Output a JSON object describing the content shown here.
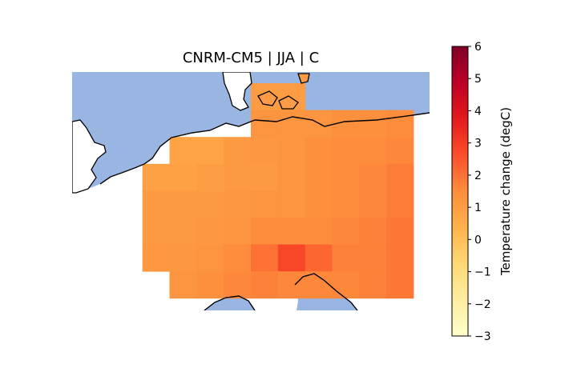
{
  "title": "CNRM-CM5 | JJA | C",
  "colorbar": {
    "label": "Temperature change (degC)",
    "min": -3,
    "max": 6,
    "ticks": [
      -3,
      -2,
      -1,
      0,
      1,
      2,
      3,
      4,
      5,
      6
    ],
    "tick_labels": [
      "−3",
      "−2",
      "−1",
      "0",
      "1",
      "2",
      "3",
      "4",
      "5",
      "6"
    ],
    "colormap": "YlOrRd",
    "stops": [
      "#ffffcc",
      "#ffeda0",
      "#fed976",
      "#feb24c",
      "#fd8d3c",
      "#fc4e2a",
      "#e31a1c",
      "#bd0026",
      "#800026"
    ]
  },
  "colors": {
    "sea": "#98b6e1",
    "coast": "#000000"
  },
  "grid": {
    "rows": 9,
    "cols": 12,
    "values": [
      [
        null,
        null,
        null,
        null,
        null,
        null,
        1.0,
        1.0,
        null,
        null,
        null,
        null
      ],
      [
        null,
        null,
        null,
        null,
        null,
        null,
        1.3,
        1.3,
        1.3,
        1.4,
        1.4,
        1.5
      ],
      [
        null,
        null,
        null,
        0.8,
        0.8,
        1.1,
        1.2,
        1.3,
        1.4,
        1.5,
        1.5,
        1.6
      ],
      [
        null,
        null,
        0.9,
        0.9,
        1.0,
        1.1,
        1.1,
        1.3,
        1.4,
        1.5,
        1.6,
        1.8
      ],
      [
        null,
        null,
        1.1,
        1.1,
        1.1,
        1.2,
        1.3,
        1.3,
        1.4,
        1.5,
        1.6,
        1.8
      ],
      [
        null,
        null,
        1.1,
        1.1,
        1.2,
        1.3,
        1.5,
        1.5,
        1.5,
        1.6,
        1.7,
        1.9
      ],
      [
        null,
        null,
        1.2,
        1.2,
        1.3,
        1.5,
        2.0,
        2.8,
        2.2,
        1.7,
        1.7,
        1.9
      ],
      [
        null,
        null,
        null,
        1.3,
        1.4,
        1.6,
        1.7,
        1.6,
        1.6,
        1.6,
        1.7,
        1.9
      ],
      [
        null,
        null,
        null,
        null,
        null,
        null,
        null,
        null,
        null,
        null,
        null,
        null
      ]
    ]
  }
}
